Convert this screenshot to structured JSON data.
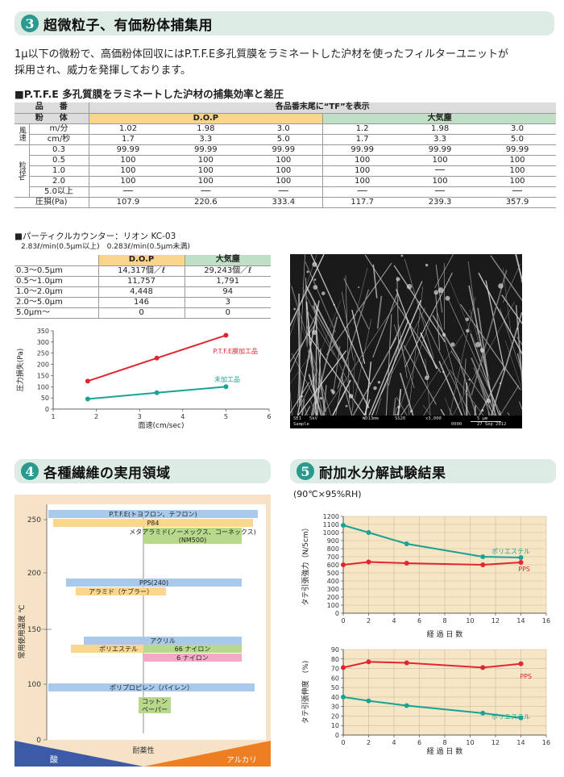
{
  "sec3": {
    "num": "3",
    "title": "超微粒子、有価粉体捕集用"
  },
  "intro1": "1μ以下の微粉で、高価粉体回収にはP.T.F.E多孔質膜をラミネートした沪材を使ったフィルターユニットが",
  "intro2": "採用され、威力を発揮しております。",
  "t1": {
    "caption": "■P.T.F.E 多孔質膜をラミネートした沪材の捕集効率と差圧",
    "col_item": "品　　番",
    "col_powder": "粉　　体",
    "suffix_note": "各品番末尾に“TF”を表示",
    "dop": "D.O.P",
    "air": "大気塵",
    "wind_label": "風速",
    "particle_label": "粒径μ",
    "rows": [
      {
        "label": "m/分",
        "vals": [
          "1.02",
          "1.98",
          "3.0",
          "1.2",
          "1.98",
          "3.0"
        ]
      },
      {
        "label": "cm/秒",
        "vals": [
          "1.7",
          "3.3",
          "5.0",
          "1.7",
          "3.3",
          "5.0"
        ]
      },
      {
        "label": "0.3",
        "vals": [
          "99.99",
          "99.99",
          "99.99",
          "99.99",
          "99.99",
          "99.99"
        ]
      },
      {
        "label": "0.5",
        "vals": [
          "100",
          "100",
          "100",
          "100",
          "100",
          "100"
        ]
      },
      {
        "label": "1.0",
        "vals": [
          "100",
          "100",
          "100",
          "100",
          "──",
          "100"
        ]
      },
      {
        "label": "2.0",
        "vals": [
          "100",
          "100",
          "100",
          "100",
          "100",
          "100"
        ]
      },
      {
        "label": "5.0以上",
        "vals": [
          "──",
          "──",
          "──",
          "──",
          "──",
          "──"
        ]
      }
    ],
    "loss_label": "圧損(Pa)",
    "loss": [
      "107.9",
      "220.6",
      "333.4",
      "117.7",
      "239.3",
      "357.9"
    ]
  },
  "counter": {
    "title": "■パーティクルカウンター：リオン KC-03",
    "sub": "2.83ℓ/min(0.5μm以上)　0.283ℓ/min(0.5μm未満)"
  },
  "t2": {
    "dop": "D.O.P",
    "air": "大気塵",
    "rows": [
      {
        "label": "0.3〜0.5μm",
        "dop": "14,317個／ℓ",
        "air": "29,243個／ℓ"
      },
      {
        "label": "0.5〜1.0μm",
        "dop": "11,757",
        "air": "1,791"
      },
      {
        "label": "1.0〜2.0μm",
        "dop": "4,448",
        "air": "94"
      },
      {
        "label": "2.0〜5.0μm",
        "dop": "146",
        "air": "3"
      },
      {
        "label": "5.0μm〜",
        "dop": "0",
        "air": "0"
      }
    ]
  },
  "sem": {
    "a": "SEI",
    "b": "5kV",
    "c": "WD13mm",
    "d": "SS20",
    "e": "x3,000",
    "f": "5 μm",
    "g": "Sample",
    "h": "0000",
    "i": "27 Sep 2012"
  },
  "chart_data": [
    {
      "type": "line",
      "xlabel": "面速(cm/sec)",
      "ylabel": "圧力損失(Pa)",
      "xlim": [
        1,
        6
      ],
      "ylim": [
        0,
        350
      ],
      "xticks": [
        "1",
        "2",
        "3",
        "4",
        "5",
        "6"
      ],
      "yticks": [
        "0",
        "50",
        "100",
        "150",
        "200",
        "250",
        "300",
        "350"
      ],
      "series": [
        {
          "name": "P.T.F.E膜加工品",
          "color": "#e0262e",
          "x": [
            1.8,
            3.4,
            5.0
          ],
          "y": [
            125,
            228,
            330
          ]
        },
        {
          "name": "未加工品",
          "color": "#1aa394",
          "x": [
            1.8,
            3.4,
            5.0
          ],
          "y": [
            45,
            73,
            100
          ]
        }
      ]
    },
    {
      "type": "line",
      "ylabel": "タテ引張強力（N/5cm）",
      "xlim": [
        0,
        16
      ],
      "ylim": [
        0,
        1200
      ],
      "xticks": [
        "0",
        "2",
        "4",
        "6",
        "8",
        "10",
        "12",
        "14",
        "16"
      ],
      "yticks": [
        "0",
        "100",
        "200",
        "300",
        "400",
        "500",
        "600",
        "700",
        "800",
        "900",
        "1000",
        "1100",
        "1200"
      ],
      "series": [
        {
          "name": "ポリエステル",
          "color": "#1aa394",
          "x": [
            0,
            2,
            5,
            11,
            14
          ],
          "y": [
            1090,
            1000,
            860,
            700,
            690
          ]
        },
        {
          "name": "PPS",
          "color": "#e0262e",
          "x": [
            0,
            2,
            5,
            11,
            14
          ],
          "y": [
            600,
            635,
            620,
            600,
            630
          ]
        }
      ]
    },
    {
      "type": "line",
      "xlabel": "経 過 日 数",
      "ylabel": "タテ引張伸度　(%)",
      "xlim": [
        0,
        16
      ],
      "ylim": [
        0,
        90
      ],
      "xticks": [
        "0",
        "2",
        "4",
        "6",
        "8",
        "10",
        "12",
        "14",
        "16"
      ],
      "yticks": [
        "0",
        "10",
        "20",
        "30",
        "40",
        "50",
        "60",
        "70",
        "80",
        "90"
      ],
      "series": [
        {
          "name": "PPS",
          "color": "#e0262e",
          "x": [
            0,
            2,
            5,
            11,
            14
          ],
          "y": [
            71,
            77,
            76,
            71,
            75
          ]
        },
        {
          "name": "ポリエステル",
          "color": "#1aa394",
          "x": [
            0,
            2,
            5,
            11,
            14
          ],
          "y": [
            40,
            36,
            31,
            23,
            18
          ]
        }
      ]
    }
  ],
  "sec4": {
    "num": "4",
    "title": "各種繊維の実用領域",
    "ylabel": "常用使用温度 ℃",
    "yticks": [
      "250",
      "200",
      "150",
      "100",
      "0"
    ],
    "bars": [
      {
        "label": "P.T.F.E(トヨフロン、テフロン)",
        "color": "#a9c9ec"
      },
      {
        "label": "P84",
        "color": "#fbd78e"
      },
      {
        "label": "メタアラミド(ノーメックス、コーネックス)",
        "color": "#b8d98b"
      },
      {
        "label": "(NM500)",
        "color": "#b8d98b"
      },
      {
        "label": "PPS(240)",
        "color": "#a9c9ec"
      },
      {
        "label": "アラミド（ケブラー）",
        "color": "#fbd78e"
      },
      {
        "label": "アクリル",
        "color": "#a9c9ec"
      },
      {
        "label": "ポリエステル",
        "color": "#fbd78e"
      },
      {
        "label": "66 ナイロン",
        "color": "#b8d98b"
      },
      {
        "label": "6 ナイロン",
        "color": "#f4a9c4"
      },
      {
        "label": "ポリプロピレン（パイレン）",
        "color": "#a9c9ec"
      },
      {
        "label": "コットン",
        "color": "#b8d98b"
      },
      {
        "label": "ペーパー",
        "color": "#b8d98b"
      }
    ],
    "acid": "酸",
    "chem": "耐薬性",
    "alkali": "アルカリ"
  },
  "sec5": {
    "num": "5",
    "title": "耐加水分解試験結果",
    "cond": "(90℃×95%RH)"
  }
}
